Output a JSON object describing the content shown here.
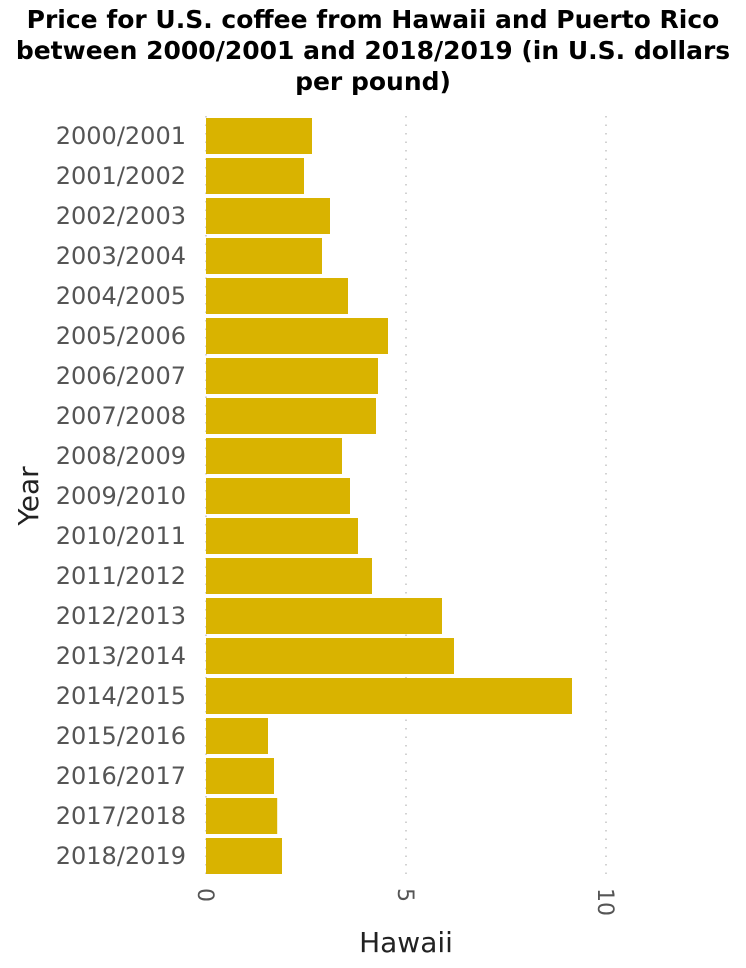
{
  "chart_data": {
    "type": "bar",
    "orientation": "horizontal",
    "title": "Price for U.S. coffee from Hawaii and Puerto Rico between 2000/2001 and 2018/2019 (in U.S. dollars per pound)",
    "xlabel": "Hawaii",
    "ylabel": "Year",
    "xlim": [
      0,
      12
    ],
    "xticks": [
      0,
      5,
      10
    ],
    "grid": "vertical-dotted",
    "bar_color": "#d9b300",
    "categories": [
      "2000/2001",
      "2001/2002",
      "2002/2003",
      "2003/2004",
      "2004/2005",
      "2005/2006",
      "2006/2007",
      "2007/2008",
      "2008/2009",
      "2009/2010",
      "2010/2011",
      "2011/2012",
      "2012/2013",
      "2013/2014",
      "2014/2015",
      "2015/2016",
      "2016/2017",
      "2017/2018",
      "2018/2019"
    ],
    "values": [
      2.65,
      2.45,
      3.1,
      2.9,
      3.55,
      4.55,
      4.3,
      4.25,
      3.4,
      3.6,
      3.8,
      4.15,
      5.9,
      6.2,
      9.15,
      1.55,
      1.7,
      1.78,
      1.9
    ]
  }
}
